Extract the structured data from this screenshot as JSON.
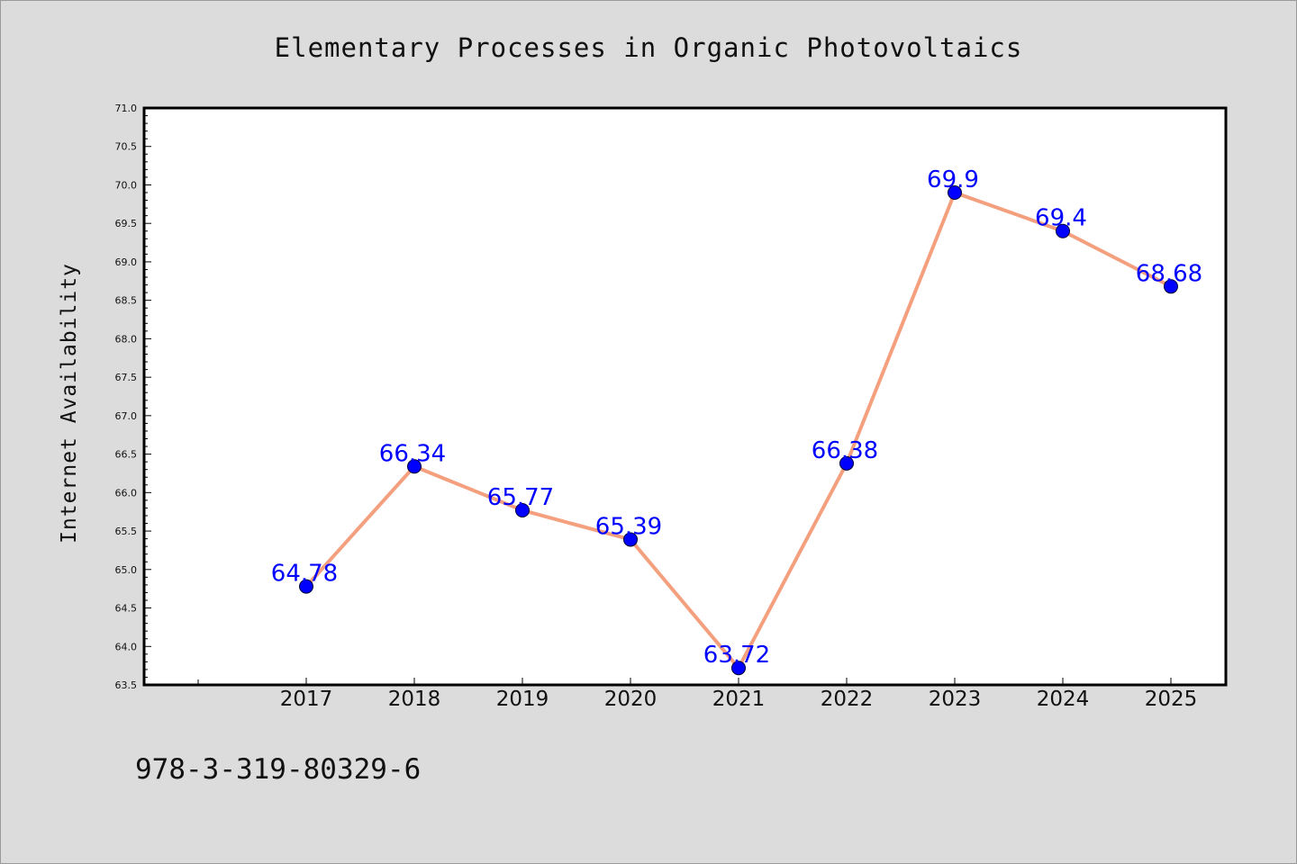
{
  "chart_data": {
    "type": "line",
    "title": "Elementary Processes in Organic Photovoltaics",
    "xlabel": "",
    "ylabel": "Internet Availability",
    "categories": [
      "2017",
      "2018",
      "2019",
      "2020",
      "2021",
      "2022",
      "2023",
      "2024",
      "2025"
    ],
    "values": [
      64.78,
      66.34,
      65.77,
      65.39,
      63.72,
      66.38,
      69.9,
      69.4,
      68.68
    ],
    "data_labels": [
      "64.78",
      "66.34",
      "65.77",
      "65.39",
      "63.72",
      "66.38",
      "69.9",
      "69.4",
      "68.68"
    ],
    "ylim": [
      63.5,
      71.0
    ],
    "yticks": [
      "63.5",
      "64.0",
      "64.5",
      "65.0",
      "65.5",
      "66.0",
      "66.5",
      "67.0",
      "67.5",
      "68.0",
      "68.5",
      "69.0",
      "69.5",
      "70.0",
      "70.5",
      "71.0"
    ],
    "grid": false,
    "legend": "none",
    "line_color": "#f4a07e",
    "marker_color": "#0000ff",
    "label_color": "#0000ff"
  },
  "annotation": "978-3-319-80329-6"
}
